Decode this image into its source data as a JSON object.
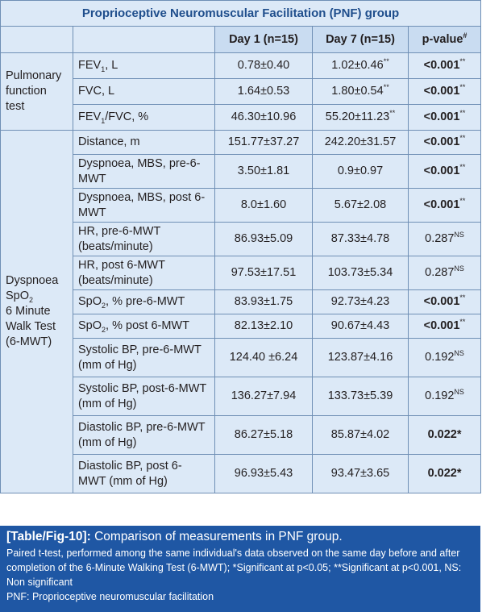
{
  "title": "Proprioceptive Neuromuscular Facilitation (PNF) group",
  "headers": {
    "day1": "Day 1 (n=15)",
    "day7": "Day 7 (n=15)",
    "pvalue": "p-value",
    "pvalue_mark": "#"
  },
  "groups": {
    "pft": [
      "Pulmonary",
      "function",
      "test"
    ],
    "dyspnoea": [
      "Dyspnoea",
      "SpO",
      "2",
      "6 Minute",
      "Walk Test",
      "(6-MWT)"
    ]
  },
  "rows": [
    {
      "label_a": "FEV",
      "label_sub": "1",
      "label_b": ", L",
      "day1": "0.78±0.40",
      "day7": "1.02±0.46",
      "day7_mark": "**",
      "p": "<0.001",
      "p_mark": "**",
      "p_bold": true
    },
    {
      "label_a": "FVC, L",
      "day1": "1.64±0.53",
      "day7": "1.80±0.54",
      "day7_mark": "**",
      "p": "<0.001",
      "p_mark": "**",
      "p_bold": true
    },
    {
      "label_a": "FEV",
      "label_sub": "1",
      "label_b": "/FVC, %",
      "day1": "46.30±10.96",
      "day7": "55.20±11.23",
      "day7_mark": "**",
      "p": "<0.001",
      "p_mark": "**",
      "p_bold": true
    },
    {
      "label_a": "Distance, m",
      "day1": "151.77±37.27",
      "day7": "242.20±31.57",
      "p": "<0.001",
      "p_mark": "**",
      "p_bold": true
    },
    {
      "label_a": "Dyspnoea, MBS, pre-6-MWT",
      "day1": "3.50±1.81",
      "day7": "0.9±0.97",
      "p": "<0.001",
      "p_mark": "**",
      "p_bold": true
    },
    {
      "label_a": "Dyspnoea, MBS, post 6-MWT",
      "day1": "8.0±1.60",
      "day7": "5.67±2.08",
      "p": "<0.001",
      "p_mark": "**",
      "p_bold": true
    },
    {
      "label_a": "HR, pre-6-MWT (beats/minute)",
      "day1": "86.93±5.09",
      "day7": "87.33±4.78",
      "p": "0.287",
      "p_mark": "NS",
      "p_bold": false
    },
    {
      "label_a": "HR, post 6-MWT (beats/minute)",
      "day1": "97.53±17.51",
      "day7": "103.73±5.34",
      "p": "0.287",
      "p_mark": "NS",
      "p_bold": false
    },
    {
      "label_a": "SpO",
      "label_sub": "2",
      "label_b": ", % pre-6-MWT",
      "day1": "83.93±1.75",
      "day7": "92.73±4.23",
      "p": "<0.001",
      "p_mark": "**",
      "p_bold": true
    },
    {
      "label_a": "SpO",
      "label_sub": "2",
      "label_b": ", % post 6-MWT",
      "day1": "82.13±2.10",
      "day7": "90.67±4.43",
      "p": "<0.001",
      "p_mark": "**",
      "p_bold": true
    },
    {
      "label_a": "Systolic BP, pre-6-MWT (mm of Hg)",
      "day1": "124.40 ±6.24",
      "day7": "123.87±4.16",
      "p": "0.192",
      "p_mark": "NS",
      "p_bold": false
    },
    {
      "label_a": "Systolic BP, post-6-MWT (mm of Hg)",
      "day1": "136.27±7.94",
      "day7": "133.73±5.39",
      "p": "0.192",
      "p_mark": "NS",
      "p_bold": false
    },
    {
      "label_a": "Diastolic BP, pre-6-MWT (mm of Hg)",
      "day1": "86.27±5.18",
      "day7": "85.87±4.02",
      "p": "0.022*",
      "p_bold": true
    },
    {
      "label_a": "Diastolic BP, post 6-MWT (mm of Hg)",
      "day1": "96.93±5.43",
      "day7": "93.47±3.65",
      "p": "0.022*",
      "p_bold": true
    }
  ],
  "caption": {
    "tag": "[Table/Fig-10]:",
    "title": " Comparison of measurements in PNF group.",
    "note1": "Paired t-test, performed among the same individual's data observed on the same day before and after completion of the 6-Minute Walking Test (6-MWT); *Significant at p<0.05; **Significant at p<0.001, NS: Non significant",
    "note2": "PNF: Proprioceptive neuromuscular facilitation"
  }
}
